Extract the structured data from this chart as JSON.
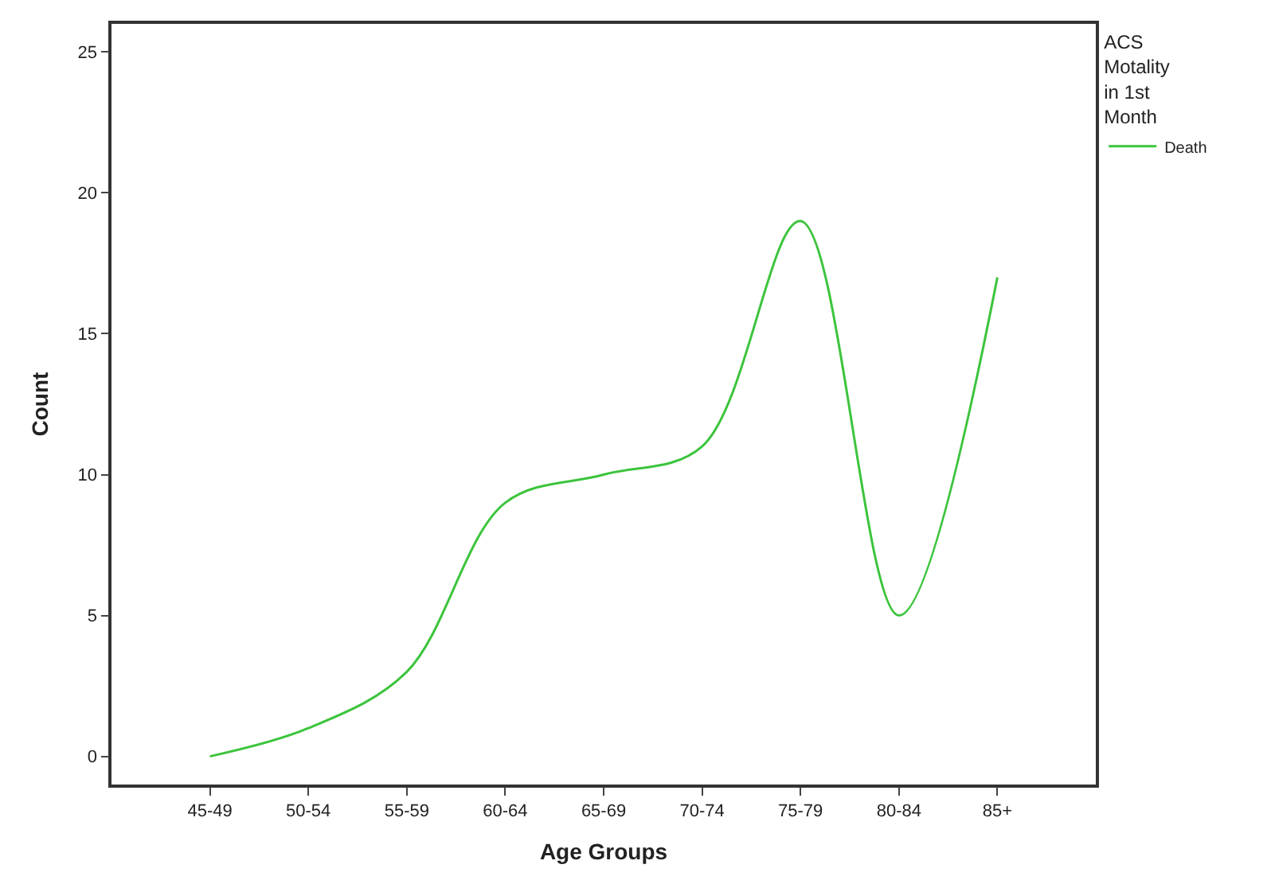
{
  "chart_data": {
    "type": "line",
    "xlabel": "Age Groups",
    "ylabel": "Count",
    "legend_title": "ACS\nMotality\nin 1st\nMonth",
    "categories": [
      "45-49",
      "50-54",
      "55-59",
      "60-64",
      "65-69",
      "70-74",
      "75-79",
      "80-84",
      "85+"
    ],
    "series": [
      {
        "name": "Death",
        "color": "#3cc43c",
        "values": [
          0,
          1,
          3,
          9,
          10,
          11,
          19,
          5,
          17
        ]
      }
    ],
    "ylim": [
      -1,
      26
    ],
    "yticks": [
      0,
      5,
      10,
      15,
      20,
      25
    ],
    "legend": "top right",
    "marker": "none",
    "line_style": "solid"
  }
}
